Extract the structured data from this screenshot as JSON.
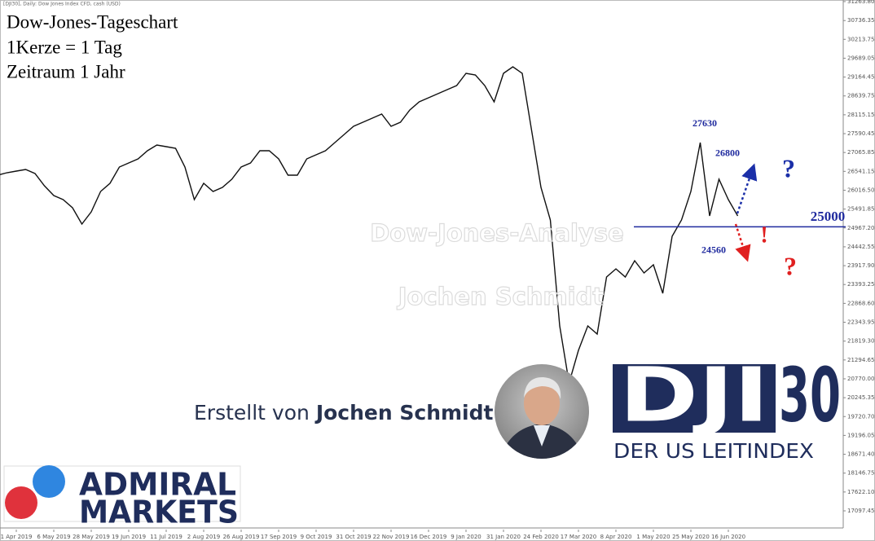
{
  "header": "[DJI30], Daily: Dow Jones Index CFD, cash (USD)",
  "chart_data": {
    "type": "line",
    "title": "Dow-Jones-Tageschart",
    "subtitle": [
      "1Kerze = 1 Tag",
      "Zeitraum 1 Jahr"
    ],
    "categories": [
      null,
      null,
      "1 Apr 2019",
      null,
      null,
      null,
      "6 May 2019",
      null,
      null,
      null,
      "28 May 2019",
      null,
      null,
      null,
      "19 Jun 2019",
      null,
      null,
      null,
      "11 Jul 2019",
      null,
      null,
      null,
      "2 Aug 2019",
      null,
      null,
      null,
      "26 Aug 2019",
      null,
      null,
      null,
      "17 Sep 2019",
      null,
      null,
      null,
      "9 Oct 2019",
      null,
      null,
      null,
      "31 Oct 2019",
      null,
      null,
      null,
      "22 Nov 2019",
      null,
      null,
      null,
      "16 Dec 2019",
      null,
      null,
      null,
      "9 Jan 2020",
      null,
      null,
      null,
      "31 Jan 2020",
      null,
      null,
      null,
      "24 Feb 2020",
      null,
      null,
      null,
      "17 Mar 2020",
      null,
      null,
      null,
      "8 Apr 2020",
      null,
      null,
      null,
      "1 May 2020",
      null,
      null,
      null,
      "25 May 2020",
      null,
      null,
      null,
      "16 Jun 2020",
      null
    ],
    "values": [
      26435,
      26503,
      26548,
      26594,
      26481,
      26141,
      25869,
      25755,
      25529,
      25075,
      25415,
      25982,
      26209,
      26662,
      26775,
      26889,
      27115,
      27274,
      27229,
      27183,
      26662,
      25755,
      26209,
      25982,
      26095,
      26322,
      26662,
      26775,
      27115,
      27115,
      26889,
      26435,
      26435,
      26889,
      27002,
      27115,
      27342,
      27569,
      27795,
      27909,
      28022,
      28135,
      27795,
      27909,
      28249,
      28475,
      28588,
      28702,
      28815,
      28929,
      29269,
      29223,
      28929,
      28475,
      29269,
      29450,
      29269,
      27682,
      26095,
      25189,
      22242,
      20656,
      21562,
      22242,
      22015,
      23602,
      23829,
      23602,
      24056,
      23716,
      23942,
      23149,
      24735,
      25189,
      25982,
      27342,
      25302,
      26322,
      25755,
      25302
    ],
    "color": "#111111",
    "ylim": [
      16576,
      31308
    ],
    "yticks": [
      17097.45,
      {
        "value": 17622.1,
        "label": "17622.10"
      },
      18146.75,
      {
        "value": 18671.4,
        "label": "18671.40"
      },
      19196.05,
      {
        "value": 19720.7,
        "label": "19720.70"
      },
      20245.35,
      {
        "value": 20770,
        "label": "20770.00"
      },
      21294.65,
      {
        "value": 21819.3,
        "label": "21819.30"
      },
      22343.95,
      {
        "value": 22868.6,
        "label": "22868.60"
      },
      23393.25,
      {
        "value": 23917.9,
        "label": "23917.90"
      },
      24442.55,
      {
        "value": 24967.2,
        "label": "24967.20"
      },
      25491.85,
      {
        "value": 26016.5,
        "label": "26016.50"
      },
      26541.15,
      27065.85,
      27590.45,
      28115.15,
      28639.75,
      29164.45,
      29689.05,
      30213.75,
      30736.35,
      {
        "value": 31263.8,
        "label": "31263.80"
      }
    ],
    "hline": 25000,
    "hline_color": "#1f2a9e",
    "peaks": [
      27630,
      26800,
      24560
    ],
    "signs": [
      {
        "text": "?",
        "color": "#1b2fa8"
      },
      {
        "text": "!",
        "color": "#e02020"
      },
      {
        "text": "?",
        "color": "#e02020"
      }
    ],
    "watermarks": [
      "Dow-Jones-Analyse",
      "Jochen Schmidt"
    ]
  },
  "credit": {
    "prefix": "Erstellt von",
    "name": "Jochen Schmidt"
  },
  "admiral": [
    "ADMIRAL",
    "MARKETS"
  ],
  "dji": {
    "left": "DJI",
    "right": "30",
    "tagline": "DER US LEITINDEX"
  }
}
